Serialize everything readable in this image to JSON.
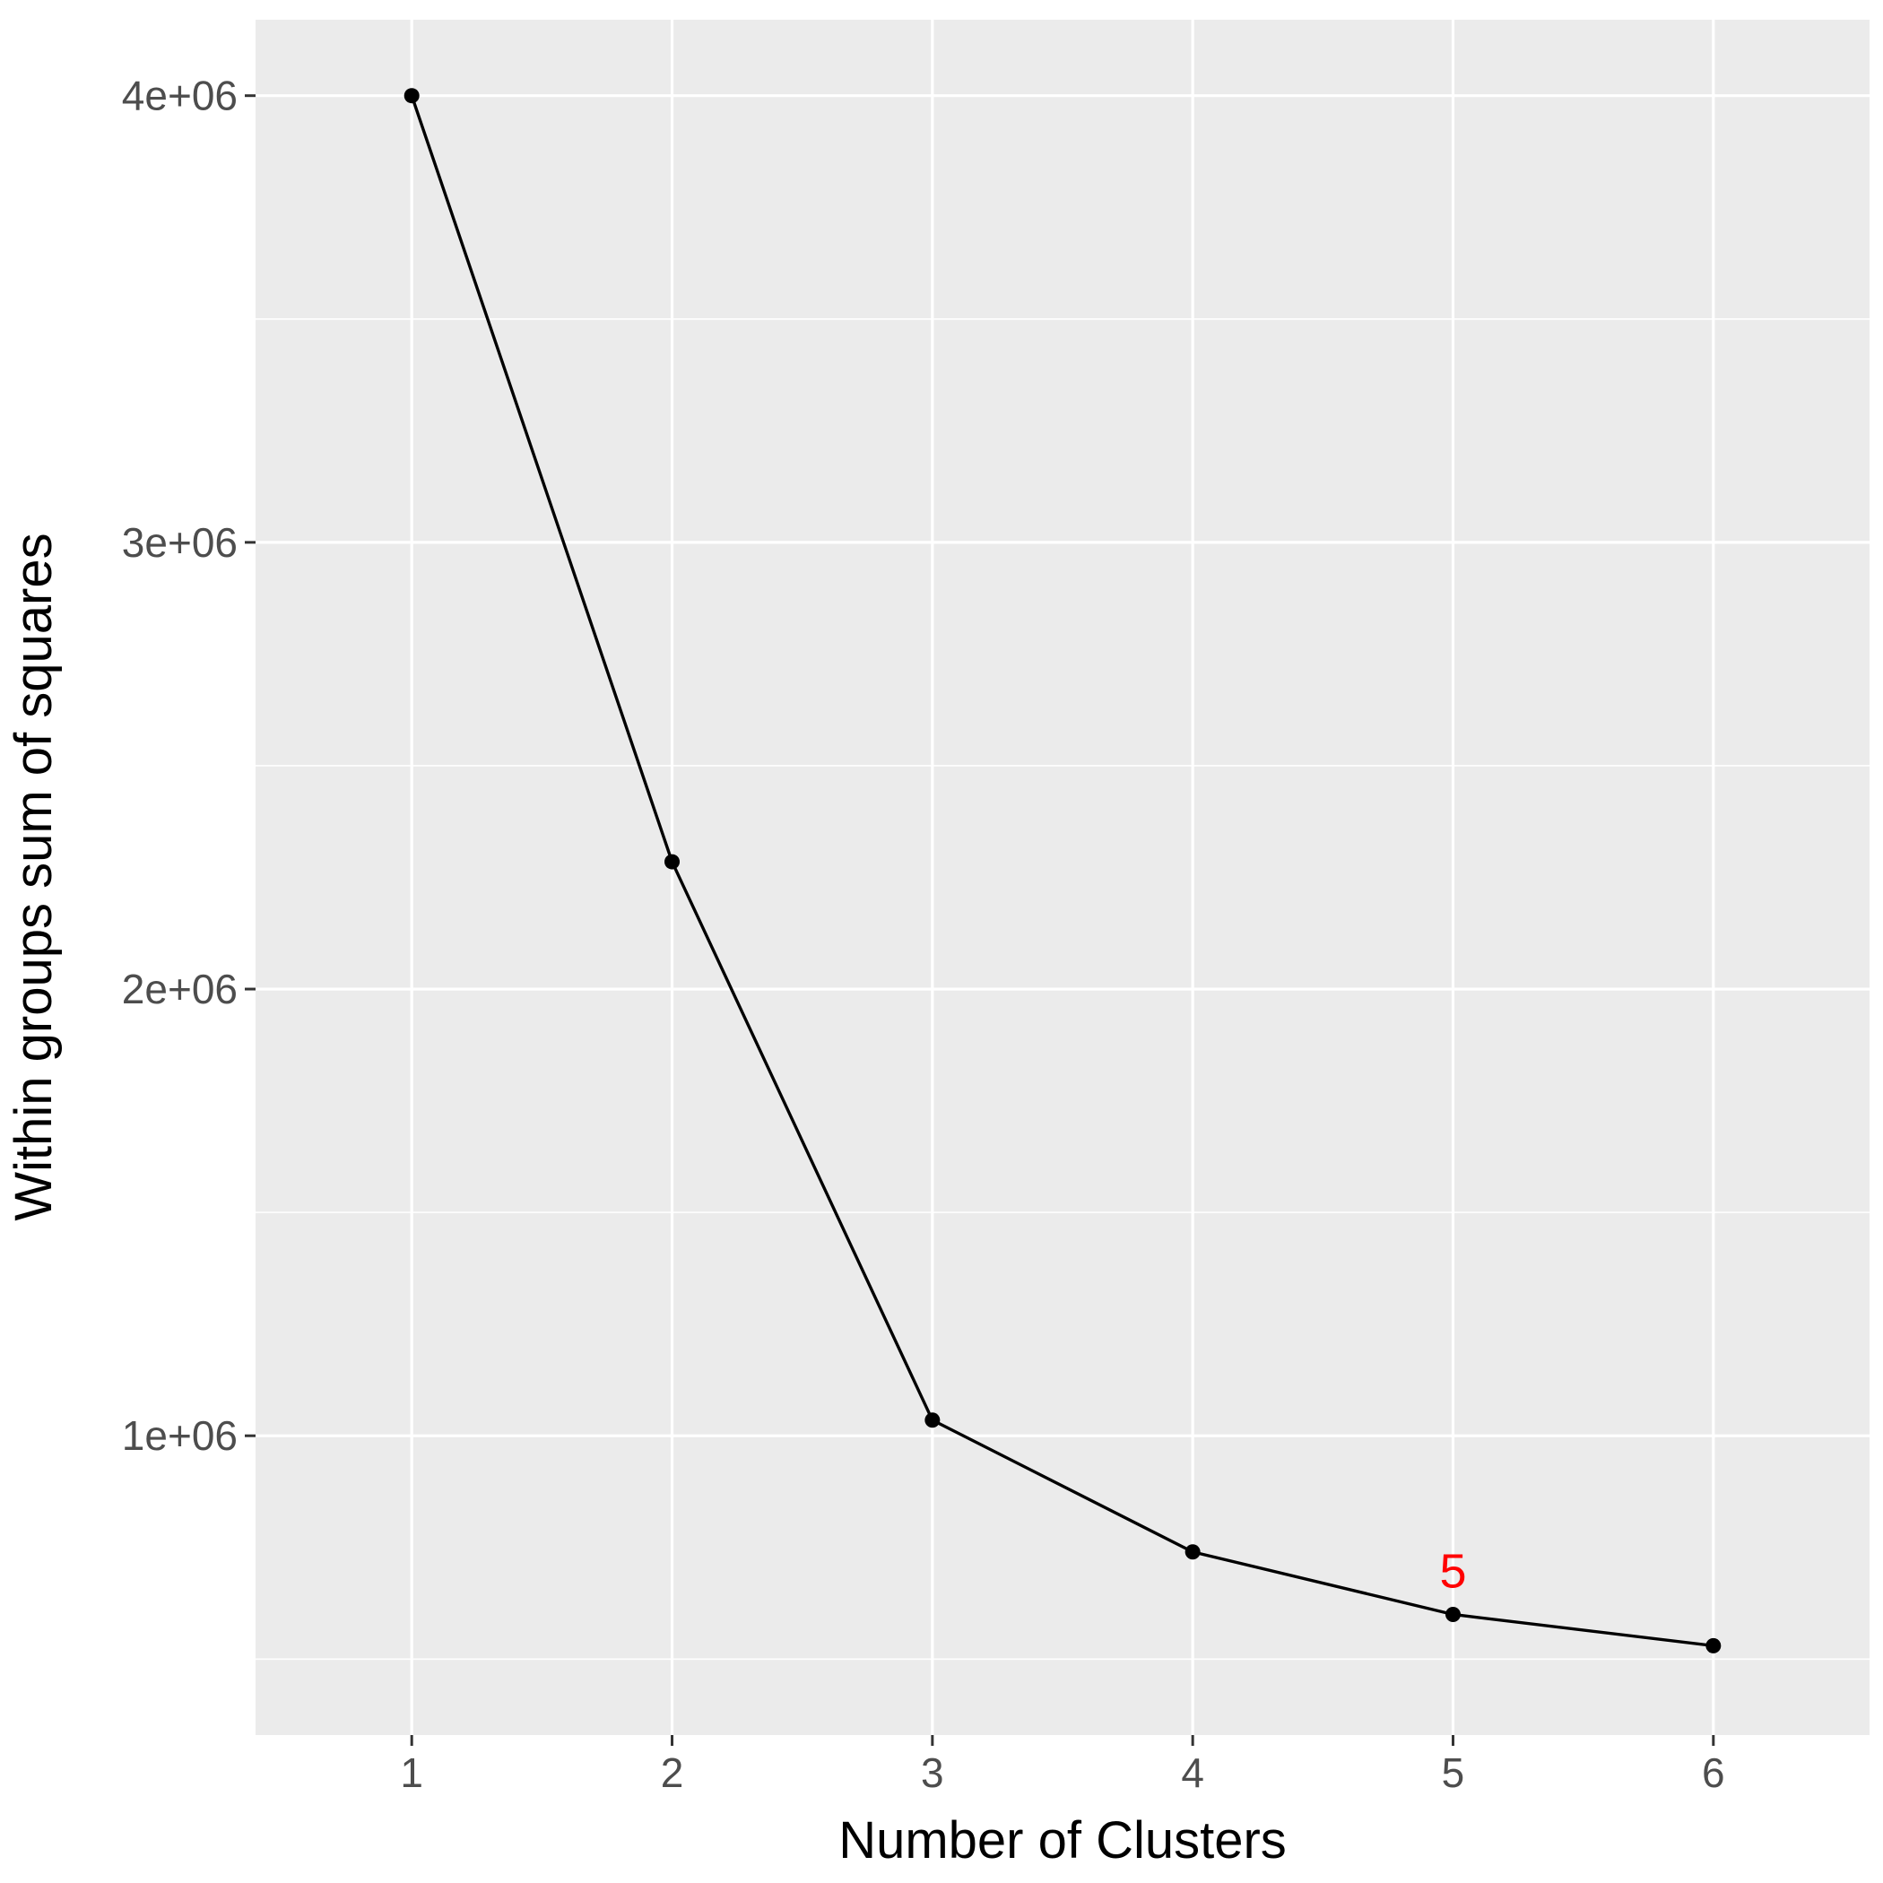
{
  "chart_data": {
    "type": "line",
    "title": "",
    "xlabel": "Number of Clusters",
    "ylabel": "Within groups sum of squares",
    "x": [
      1,
      2,
      3,
      4,
      5,
      6
    ],
    "series": [
      {
        "values": [
          4000000,
          2285000,
          1035000,
          740000,
          600000,
          530000
        ]
      }
    ],
    "xlim": [
      0.4,
      6.6
    ],
    "ylim": [
      330000,
      4170000
    ],
    "x_ticks": [
      1,
      2,
      3,
      4,
      5,
      6
    ],
    "x_tick_labels": [
      "1",
      "2",
      "3",
      "4",
      "5",
      "6"
    ],
    "y_ticks": [
      1000000,
      2000000,
      3000000,
      4000000
    ],
    "y_tick_labels": [
      "1e+06",
      "2e+06",
      "3e+06",
      "4e+06"
    ],
    "y_minor_ticks": [
      500000,
      1500000,
      2500000,
      3500000
    ],
    "grid": true,
    "annotations": [
      {
        "x": 5,
        "y": 600000,
        "text": "5",
        "color": "#ff0000"
      }
    ],
    "colors": {
      "panel_background": "#ebebeb",
      "grid": "#ffffff",
      "line": "#000000",
      "point": "#000000",
      "axis_ticks": "#333333"
    }
  }
}
